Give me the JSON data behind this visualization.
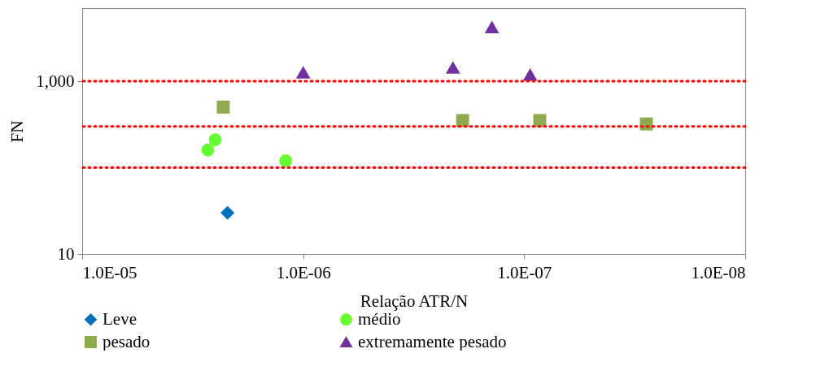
{
  "chart_data": {
    "type": "scatter",
    "xlabel": "Relação ATR/N",
    "ylabel": "FN",
    "log": "xy",
    "grid": false,
    "legend": "bottom",
    "xlim": [
      1e-05,
      1e-08
    ],
    "xticks": [
      {
        "value": 1e-05,
        "label": "1.0E-05"
      },
      {
        "value": 1e-06,
        "label": "1.0E-06"
      },
      {
        "value": 1e-07,
        "label": "1.0E-07"
      },
      {
        "value": 1e-08,
        "label": "1.0E-08"
      }
    ],
    "ylim": [
      10,
      7000
    ],
    "yticks": [
      10,
      {
        "value": 1000,
        "label": "1,000"
      }
    ],
    "series": [
      {
        "name": "Leve",
        "color": "#0070c0",
        "marker": "diamond",
        "x": [
          2.2e-06
        ],
        "values": [
          30
        ]
      },
      {
        "name": "médio",
        "color": "#66ff33",
        "marker": "circle",
        "x": [
          2.7e-06,
          2.5e-06,
          1.2e-06
        ],
        "values": [
          160,
          210,
          120
        ]
      },
      {
        "name": "pesado",
        "color": "#8faa4f",
        "marker": "square",
        "x": [
          2.3e-06,
          1.9e-07,
          8.5e-08,
          2.8e-08
        ],
        "values": [
          500,
          350,
          350,
          320
        ]
      },
      {
        "name": "extremamente pesado",
        "color": "#7030a0",
        "marker": "triangle",
        "x": [
          1e-06,
          2.1e-07,
          1.4e-07,
          9.4e-08
        ],
        "values": [
          1250,
          1420,
          4180,
          1180
        ]
      }
    ],
    "ref_lines": [
      {
        "axis": "y",
        "value": 1000,
        "color": "#ff0000",
        "line_style": "dotted"
      },
      {
        "axis": "y",
        "value": 300,
        "color": "#ff0000",
        "line_style": "dotted"
      },
      {
        "axis": "y",
        "value": 100,
        "color": "#ff0000",
        "line_style": "dotted"
      }
    ]
  }
}
